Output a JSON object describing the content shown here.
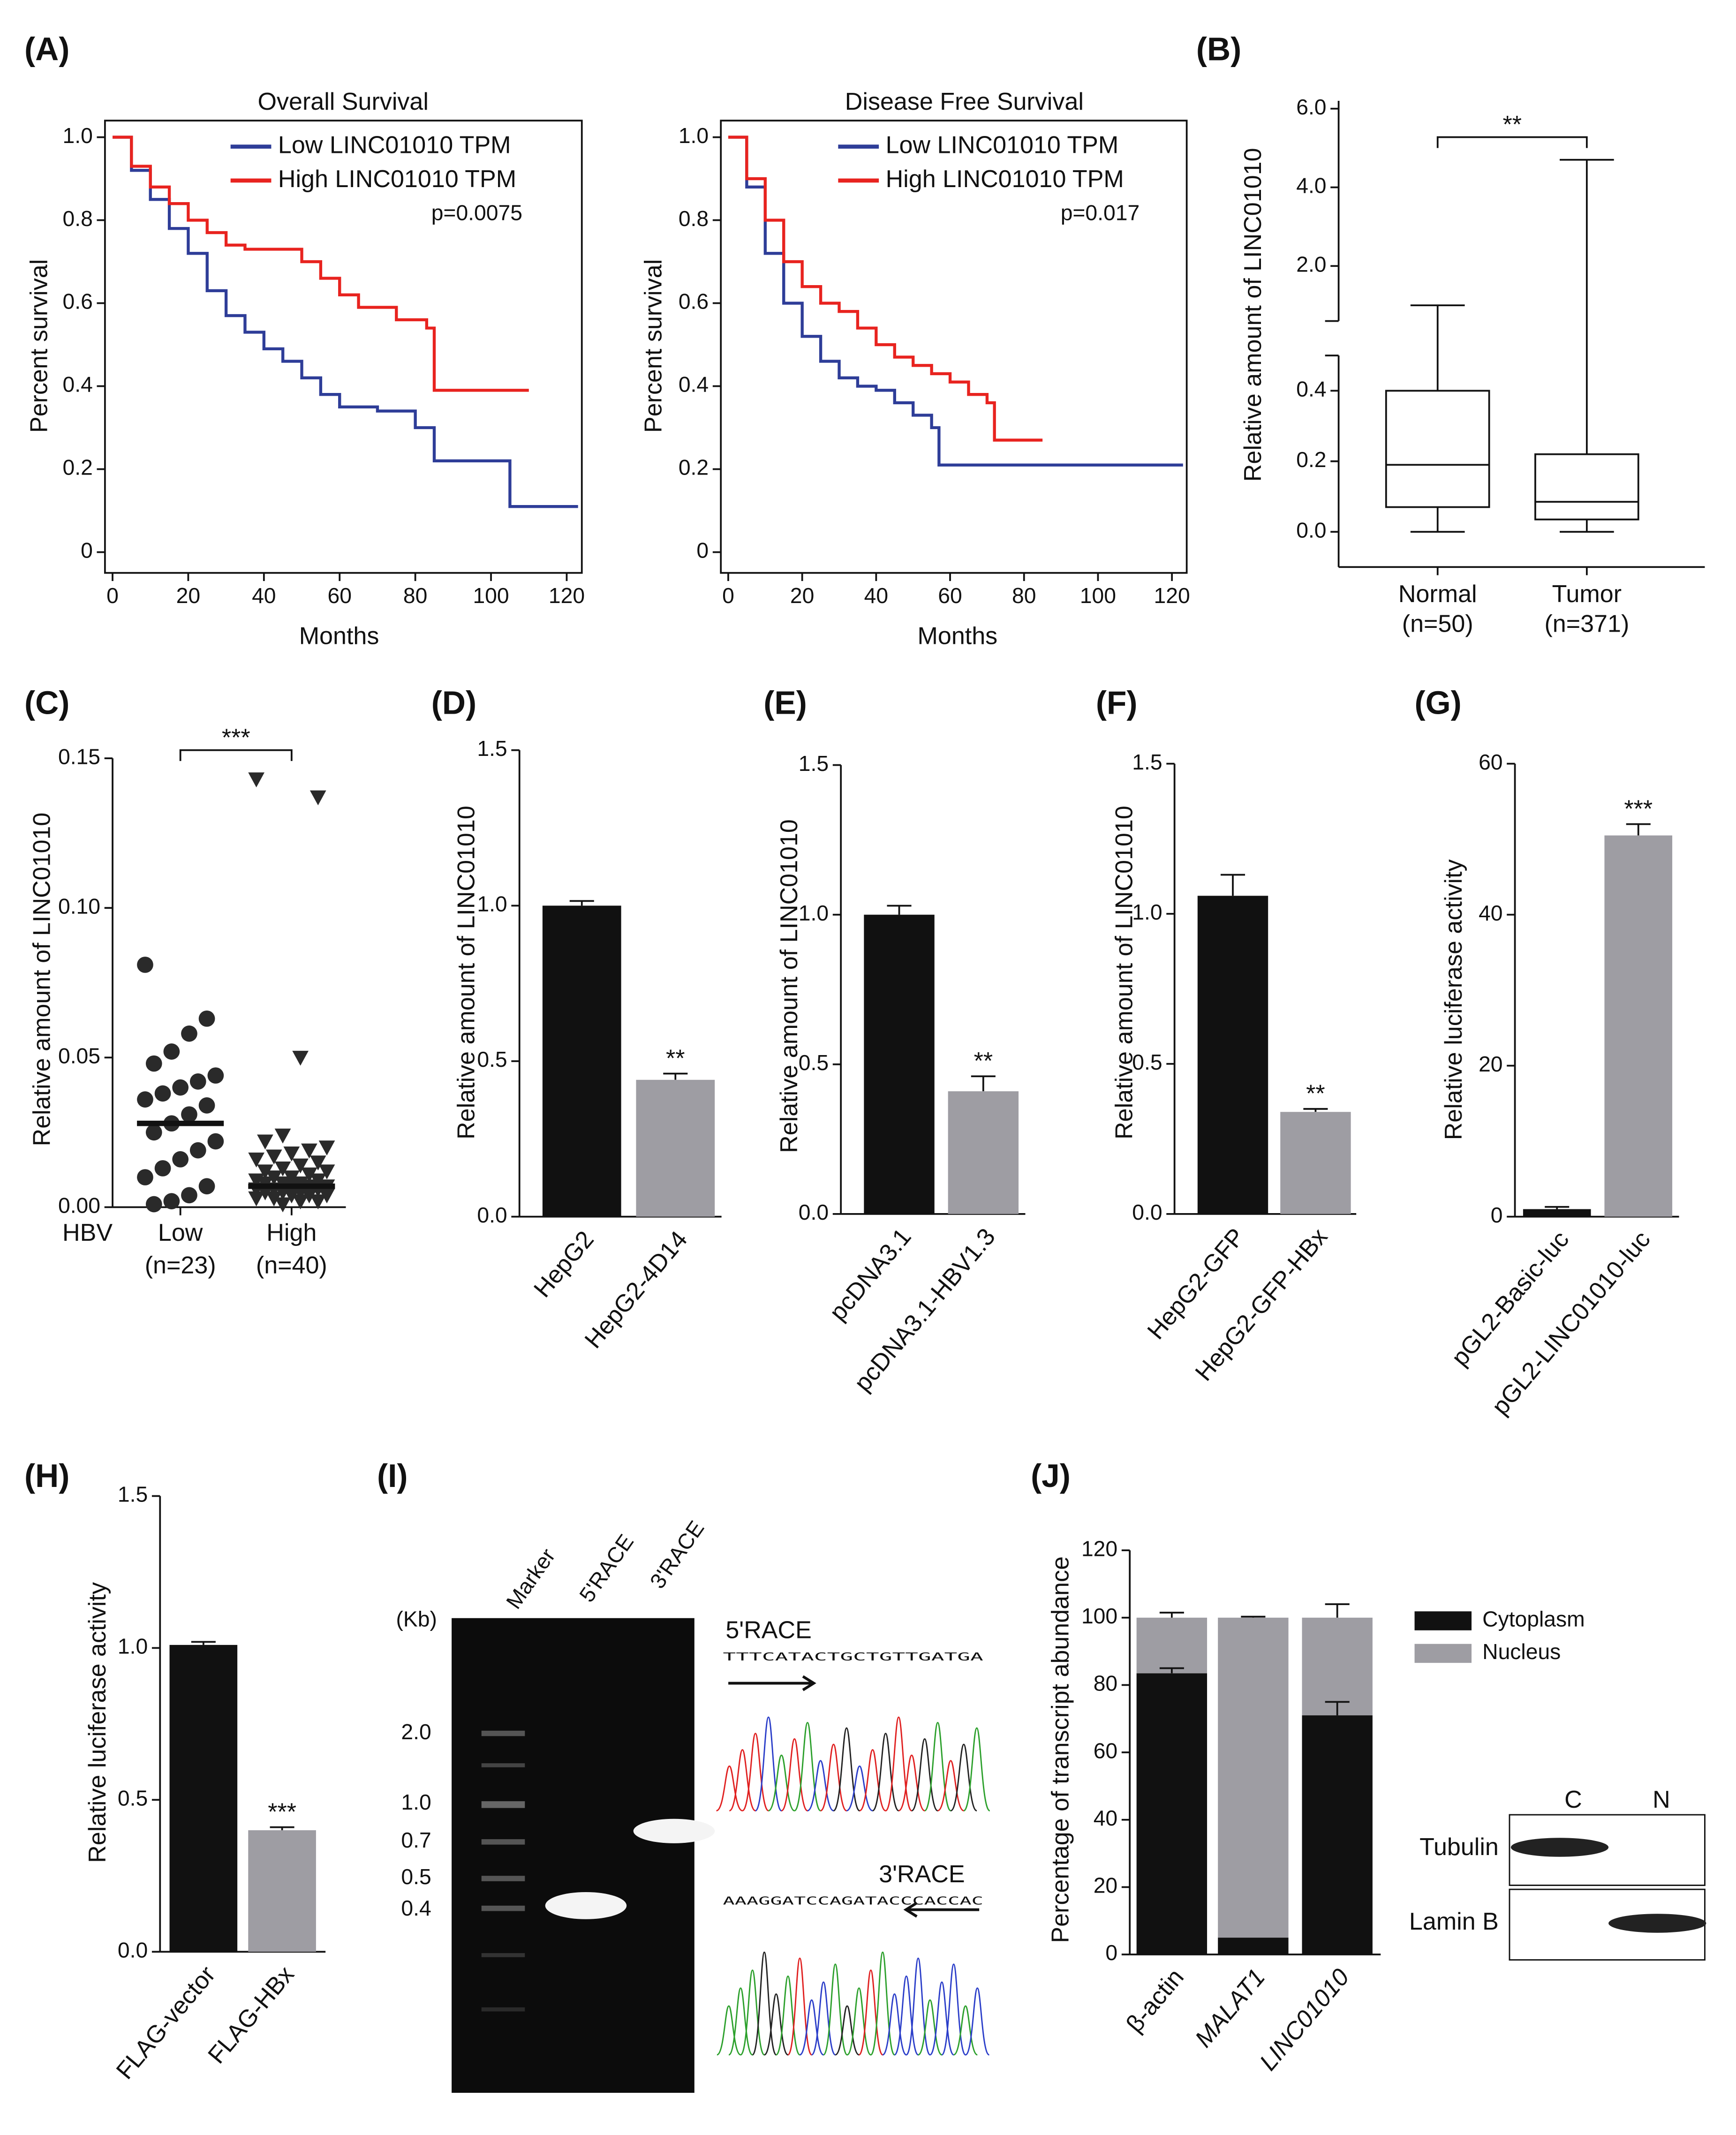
{
  "panel_labels": [
    "(A)",
    "(B)",
    "(C)",
    "(D)",
    "(E)",
    "(F)",
    "(G)",
    "(H)",
    "(I)",
    "(J)"
  ],
  "chart_data": [
    {
      "type": "line",
      "title": "Overall Survival",
      "xlabel": "Months",
      "ylabel": "Percent survival",
      "xlim": [
        -2,
        124
      ],
      "xticks": [
        0,
        20,
        40,
        60,
        80,
        100,
        120
      ],
      "ylim": [
        -0.05,
        1.04
      ],
      "yticks": [
        {
          "value": 1,
          "label": "1.0"
        },
        0.8,
        0.6,
        0.4,
        0.2,
        0
      ],
      "step": true,
      "annotation": "p=0.0075",
      "series": [
        {
          "name": "Low LINC01010 TPM",
          "color": "#2e3d98",
          "x": [
            0,
            5,
            10,
            15,
            20,
            25,
            30,
            35,
            40,
            45,
            50,
            55,
            60,
            70,
            80,
            85,
            100,
            105,
            110,
            123
          ],
          "values": [
            1,
            0.92,
            0.85,
            0.78,
            0.72,
            0.63,
            0.57,
            0.53,
            0.49,
            0.46,
            0.42,
            0.38,
            0.35,
            0.34,
            0.3,
            0.22,
            0.22,
            0.11,
            0.11,
            0.11
          ]
        },
        {
          "name": "High LINC01010 TPM",
          "color": "#e8231f",
          "x": [
            0,
            5,
            10,
            15,
            20,
            25,
            30,
            35,
            45,
            50,
            55,
            60,
            65,
            75,
            83,
            85,
            110
          ],
          "values": [
            1,
            0.93,
            0.88,
            0.84,
            0.8,
            0.77,
            0.74,
            0.73,
            0.73,
            0.7,
            0.66,
            0.62,
            0.59,
            0.56,
            0.54,
            0.39,
            0.39
          ]
        }
      ]
    },
    {
      "type": "line",
      "title": "Disease Free Survival",
      "xlabel": "Months",
      "ylabel": "Percent survival",
      "xlim": [
        -2,
        124
      ],
      "xticks": [
        0,
        20,
        40,
        60,
        80,
        100,
        120
      ],
      "ylim": [
        -0.05,
        1.04
      ],
      "yticks": [
        {
          "value": 1,
          "label": "1.0"
        },
        0.8,
        0.6,
        0.4,
        0.2,
        0
      ],
      "step": true,
      "annotation": "p=0.017",
      "series": [
        {
          "name": "Low LINC01010 TPM",
          "color": "#2e3d98",
          "x": [
            0,
            5,
            10,
            15,
            20,
            25,
            30,
            35,
            40,
            45,
            50,
            55,
            57,
            123
          ],
          "values": [
            1,
            0.88,
            0.72,
            0.6,
            0.52,
            0.46,
            0.42,
            0.4,
            0.39,
            0.36,
            0.33,
            0.3,
            0.21,
            0.21
          ]
        },
        {
          "name": "High LINC01010 TPM",
          "color": "#e8231f",
          "x": [
            0,
            5,
            10,
            15,
            20,
            25,
            30,
            35,
            40,
            45,
            50,
            55,
            60,
            65,
            70,
            72,
            85
          ],
          "values": [
            1,
            0.9,
            0.8,
            0.7,
            0.64,
            0.6,
            0.58,
            0.54,
            0.5,
            0.47,
            0.45,
            0.43,
            0.41,
            0.38,
            0.36,
            0.27,
            0.27
          ]
        }
      ]
    },
    {
      "type": "box",
      "ylabel": "Relative amount of LINC01010",
      "categories": [
        "Normal",
        "Tumor"
      ],
      "category_notes": [
        "(n=50)",
        "(n=371)"
      ],
      "ylim": [
        -0.1,
        6.2
      ],
      "ybreak": [
        0.5,
        0.6
      ],
      "yticks": [
        {
          "value": 0,
          "label": "0.0"
        },
        0.2,
        0.4,
        {
          "value": 2,
          "label": "2.0"
        },
        {
          "value": 4,
          "label": "4.0"
        },
        {
          "value": 6,
          "label": "6.0"
        }
      ],
      "min": [
        0,
        0
      ],
      "q1": [
        0.07,
        0.035
      ],
      "median": [
        0.19,
        0.085
      ],
      "q3": [
        0.4,
        0.22
      ],
      "max": [
        1.0,
        4.7
      ],
      "annotation": "**"
    },
    {
      "type": "dot",
      "ylabel": "Relative amount of LINC01010",
      "axis_prefix": "HBV",
      "categories": [
        "Low",
        "High"
      ],
      "category_notes": [
        "(n=23)",
        "(n=40)"
      ],
      "ylim": [
        0,
        0.15
      ],
      "yticks": [
        {
          "value": 0,
          "label": "0.00"
        },
        0.05,
        {
          "value": 0.1,
          "label": "0.10"
        },
        0.15
      ],
      "annotation": "***",
      "groups": [
        {
          "marker": "circle",
          "mean": 0.028,
          "values": [
            0.081,
            0.063,
            0.058,
            0.052,
            0.048,
            0.044,
            0.042,
            0.04,
            0.038,
            0.036,
            0.034,
            0.031,
            0.028,
            0.025,
            0.022,
            0.019,
            0.016,
            0.013,
            0.01,
            0.007,
            0.004,
            0.002,
            0.001
          ]
        },
        {
          "marker": "triangle-down",
          "mean": 0.007,
          "values": [
            0.143,
            0.137,
            0.05,
            0.024,
            0.022,
            0.02,
            0.019,
            0.018,
            0.017,
            0.016,
            0.015,
            0.014,
            0.013,
            0.012,
            0.012,
            0.011,
            0.01,
            0.01,
            0.009,
            0.009,
            0.008,
            0.008,
            0.008,
            0.007,
            0.007,
            0.007,
            0.006,
            0.006,
            0.006,
            0.005,
            0.005,
            0.005,
            0.004,
            0.004,
            0.004,
            0.003,
            0.003,
            0.002,
            0.002,
            0.001
          ]
        }
      ]
    },
    {
      "type": "bar",
      "ylabel": "Relative amount of LINC01010",
      "categories": [
        "HepG2",
        "HepG2-4D14"
      ],
      "values": [
        1.0,
        0.44
      ],
      "errors": [
        0.015,
        0.02
      ],
      "colors": [
        "#111111",
        "#9e9da3"
      ],
      "annotations": [
        null,
        "**"
      ],
      "ylim": [
        0,
        1.5
      ],
      "yticks": [
        {
          "value": 0,
          "label": "0.0"
        },
        0.5,
        {
          "value": 1,
          "label": "1.0"
        },
        1.5
      ]
    },
    {
      "type": "bar",
      "ylabel": "Relative amount of LINC01010",
      "categories": [
        "pcDNA3.1",
        "pcDNA3.1-HBV1.3"
      ],
      "values": [
        1.0,
        0.41
      ],
      "errors": [
        0.03,
        0.05
      ],
      "colors": [
        "#111111",
        "#9e9da3"
      ],
      "annotations": [
        null,
        "**"
      ],
      "ylim": [
        0,
        1.5
      ],
      "yticks": [
        {
          "value": 0,
          "label": "0.0"
        },
        0.5,
        {
          "value": 1,
          "label": "1.0"
        },
        1.5
      ]
    },
    {
      "type": "bar",
      "ylabel": "Relative amount of LINC01010",
      "categories": [
        "HepG2-GFP",
        "HepG2-GFP-HBx"
      ],
      "values": [
        1.06,
        0.34
      ],
      "errors": [
        0.07,
        0.01
      ],
      "colors": [
        "#111111",
        "#9e9da3"
      ],
      "annotations": [
        null,
        "**"
      ],
      "ylim": [
        0,
        1.5
      ],
      "yticks": [
        {
          "value": 0,
          "label": "0.0"
        },
        0.5,
        {
          "value": 1,
          "label": "1.0"
        },
        1.5
      ]
    },
    {
      "type": "bar",
      "ylabel": "Relative luciferase activity",
      "categories": [
        "pGL2-Basic-luc",
        "pGL2-LINC01010-luc"
      ],
      "values": [
        1,
        50.5
      ],
      "errors": [
        0.3,
        1.5
      ],
      "colors": [
        "#111111",
        "#9e9da3"
      ],
      "annotations": [
        null,
        "***"
      ],
      "ylim": [
        0,
        60
      ],
      "yticks": [
        0,
        20,
        40,
        60
      ]
    },
    {
      "type": "bar",
      "ylabel": "Relative luciferase activity",
      "categories": [
        "FLAG-vector",
        "FLAG-HBx"
      ],
      "values": [
        1.01,
        0.4
      ],
      "errors": [
        0.01,
        0.01
      ],
      "colors": [
        "#111111",
        "#9e9da3"
      ],
      "annotations": [
        null,
        "***"
      ],
      "ylim": [
        0,
        1.5
      ],
      "yticks": [
        {
          "value": 0,
          "label": "0.0"
        },
        0.5,
        {
          "value": 1,
          "label": "1.0"
        },
        1.5
      ]
    },
    {
      "type": "stacked_bar",
      "ylabel": "Percentage of transcript abundance",
      "categories": [
        "β-actin",
        "MALAT1",
        "LINC01010"
      ],
      "ylim": [
        0,
        120
      ],
      "yticks": [
        0,
        20,
        40,
        60,
        80,
        100,
        120
      ],
      "series": [
        {
          "name": "Cytoplasm",
          "color": "#111111",
          "values": [
            83.5,
            5,
            71
          ],
          "errors": [
            1.5,
            null,
            4
          ]
        },
        {
          "name": "Nucleus",
          "color": "#9e9da3",
          "values": [
            16.5,
            95,
            29
          ],
          "errors": [
            1.5,
            0.3,
            4
          ]
        }
      ]
    }
  ],
  "gel": {
    "unit": "(Kb)",
    "lanes": [
      "Marker",
      "5'RACE",
      "3'RACE"
    ],
    "size_labels": [
      "2.0",
      "1.0",
      "0.7",
      "0.5",
      "0.4"
    ]
  },
  "sequencing": [
    {
      "label": "5'RACE",
      "sequence": "TTTCATACTGCTGTTGATGA"
    },
    {
      "label": "3'RACE",
      "sequence": "AAAGGATCCAGATACCCACCAC"
    }
  ],
  "blot": {
    "lanes": [
      "C",
      "N"
    ],
    "proteins": [
      "Tubulin",
      "Lamin B"
    ]
  }
}
